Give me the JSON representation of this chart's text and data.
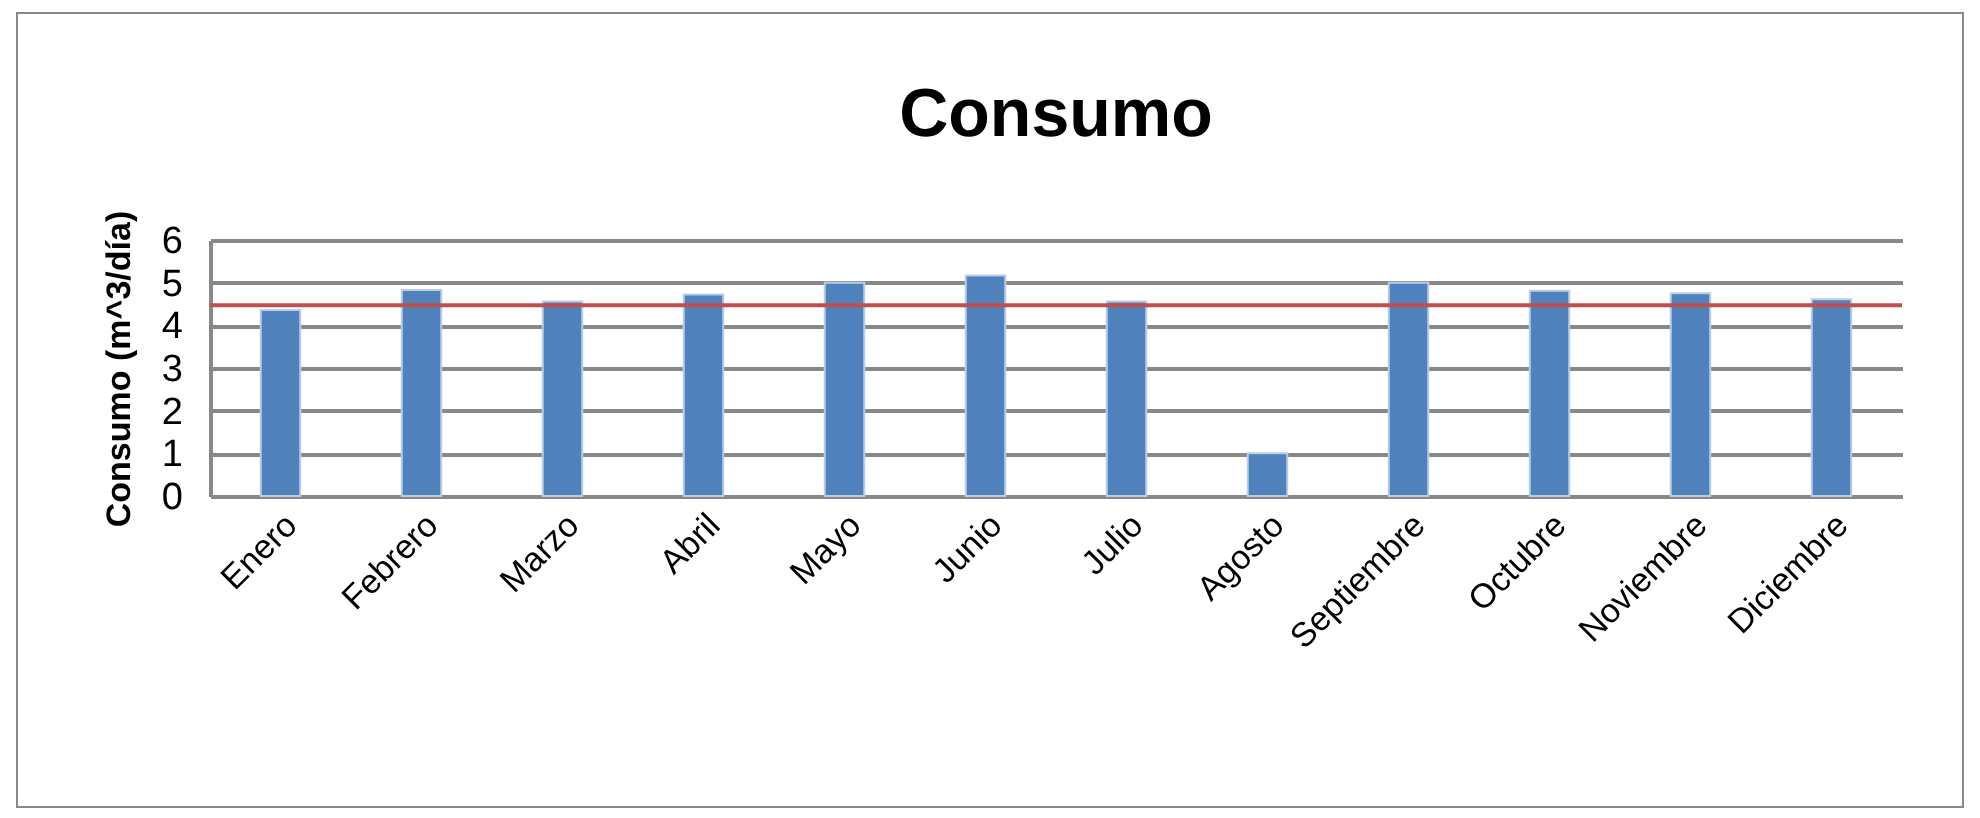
{
  "chart_data": {
    "type": "bar",
    "title": "Consumo",
    "ylabel": "Consumo (m^3/día)",
    "categories": [
      "Enero",
      "Febrero",
      "Marzo",
      "Abril",
      "Mayo",
      "Junio",
      "Julio",
      "Agosto",
      "Septiembre",
      "Octubre",
      "Noviembre",
      "Diciembre"
    ],
    "values": [
      4.36,
      4.83,
      4.56,
      4.72,
      5.0,
      5.17,
      4.56,
      1.0,
      5.0,
      4.81,
      4.75,
      4.61
    ],
    "color": "#4f81bd",
    "ylim": [
      0,
      6
    ],
    "yticks": [
      0,
      1,
      2,
      3,
      4,
      5,
      6
    ],
    "grid": "y",
    "ref_lines": [
      {
        "axis": "y",
        "value": 4.47,
        "color": "#c0504d"
      }
    ]
  }
}
